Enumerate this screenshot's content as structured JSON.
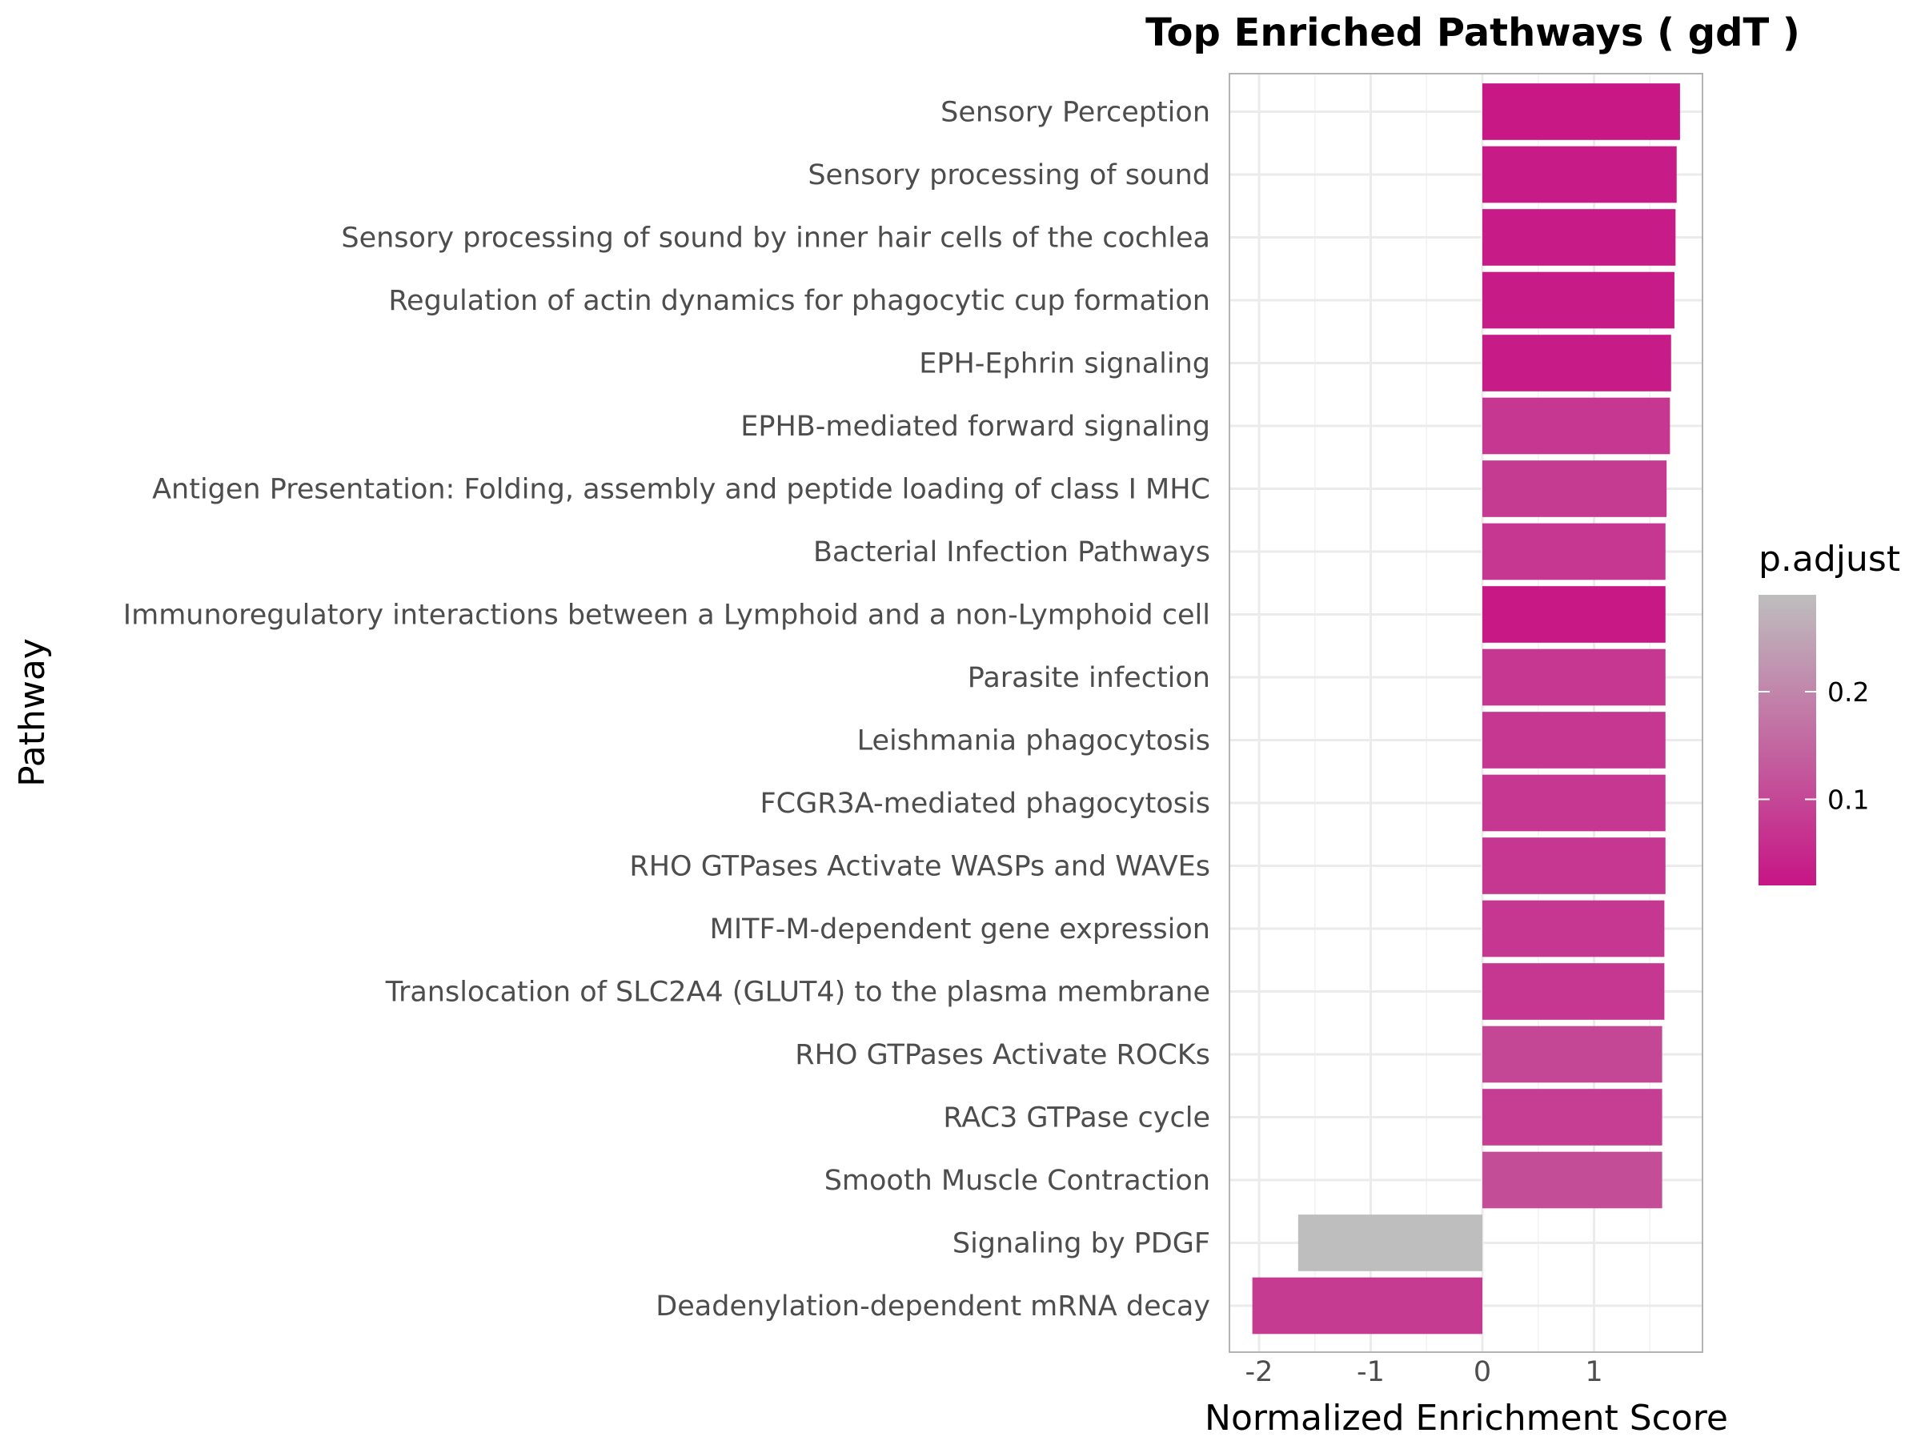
{
  "chart_data": {
    "type": "bar",
    "orientation": "horizontal",
    "title": "Top Enriched Pathways ( gdT )",
    "xlabel": "Normalized Enrichment Score",
    "ylabel": "Pathway",
    "xlim": [
      -2.25,
      1.95
    ],
    "x_ticks": [
      -2,
      -1,
      0,
      1
    ],
    "x_tick_labels": [
      "-2",
      "-1",
      "0",
      "1"
    ],
    "grid": true,
    "legend_position": "right",
    "legend": {
      "title": "p.adjust",
      "type": "gradient",
      "range": [
        0.02,
        0.29
      ],
      "ticks": [
        0.2,
        0.1
      ],
      "tick_labels": [
        "0.2",
        "0.1"
      ],
      "colors": {
        "low": "#c71585",
        "high": "#bebebe"
      }
    },
    "categories": [
      "Sensory Perception",
      "Sensory processing of sound",
      "Sensory processing of sound by inner hair cells of the cochlea",
      "Regulation of actin dynamics for phagocytic cup formation",
      "EPH-Ephrin signaling",
      "EPHB-mediated forward signaling",
      "Antigen Presentation: Folding, assembly and peptide loading of class I MHC",
      "Bacterial Infection Pathways",
      "Immunoregulatory interactions between a Lymphoid and a non-Lymphoid cell",
      "Parasite infection",
      "Leishmania phagocytosis",
      "FCGR3A-mediated phagocytosis",
      "RHO GTPases Activate WASPs and WAVEs",
      "MITF-M-dependent gene expression",
      "Translocation of SLC2A4 (GLUT4) to the plasma membrane",
      "RHO GTPases Activate ROCKs",
      "RAC3 GTPase cycle",
      "Smooth Muscle Contraction",
      "Signaling by PDGF",
      "Deadenylation-dependent mRNA decay"
    ],
    "values": [
      1.77,
      1.74,
      1.73,
      1.72,
      1.69,
      1.68,
      1.65,
      1.64,
      1.64,
      1.64,
      1.64,
      1.64,
      1.64,
      1.63,
      1.63,
      1.61,
      1.61,
      1.61,
      -1.65,
      -2.06
    ],
    "p_adjust": [
      0.025,
      0.03,
      0.03,
      0.03,
      0.03,
      0.075,
      0.08,
      0.075,
      0.025,
      0.075,
      0.075,
      0.075,
      0.075,
      0.075,
      0.075,
      0.1,
      0.085,
      0.11,
      0.29,
      0.08
    ]
  }
}
